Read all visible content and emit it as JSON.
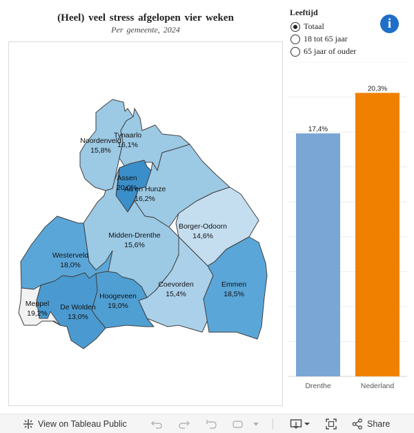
{
  "header": {
    "title": "(Heel) veel stress afgelopen vier weken",
    "subtitle": "Per gemeente, 2024"
  },
  "legend": {
    "title": "Leeftijd",
    "options": [
      {
        "label": "Totaal",
        "selected": true
      },
      {
        "label": "18 tot 65 jaar",
        "selected": false
      },
      {
        "label": "65 jaar of ouder",
        "selected": false
      }
    ]
  },
  "map": {
    "regions": [
      {
        "name": "Noordenveld",
        "value": "15,8%",
        "color": "#9cc9e4"
      },
      {
        "name": "Tynaarlo",
        "value": "16,1%",
        "color": "#9cc9e4"
      },
      {
        "name": "Assen",
        "value": "20,0%",
        "color": "#3a8fcb"
      },
      {
        "name": "Aa en Hunze",
        "value": "16,2%",
        "color": "#9cc9e4"
      },
      {
        "name": "Borger-Odoorn",
        "value": "14,6%",
        "color": "#c4def0"
      },
      {
        "name": "Midden-Drenthe",
        "value": "15,6%",
        "color": "#9cc9e4"
      },
      {
        "name": "Westerveld",
        "value": "18,0%",
        "color": "#5ba6d8"
      },
      {
        "name": "Coevorden",
        "value": "15,4%",
        "color": "#abd1ea"
      },
      {
        "name": "Emmen",
        "value": "18,5%",
        "color": "#5ba6d8"
      },
      {
        "name": "Hoogeveen",
        "value": "19,0%",
        "color": "#4f9fd3"
      },
      {
        "name": "Meppel",
        "value": "19,2%",
        "color": "#4a9ad1"
      },
      {
        "name": "De Wolden",
        "value": "13,0%",
        "color": "#f2f2f2"
      }
    ]
  },
  "chart_data": {
    "type": "bar",
    "title": "",
    "xlabel": "",
    "ylabel": "",
    "categories": [
      "Drenthe",
      "Nederland"
    ],
    "values": [
      17.4,
      20.3
    ],
    "value_labels": [
      "17,4%",
      "20,3%"
    ],
    "colors": [
      "#7aa6d6",
      "#f08100"
    ],
    "ylim": [
      0,
      22.5
    ],
    "grid": true
  },
  "info_icon": {
    "name": "info-icon",
    "glyph": "i"
  },
  "toolbar": {
    "view_label": "View on Tableau Public",
    "share_label": "Share"
  }
}
